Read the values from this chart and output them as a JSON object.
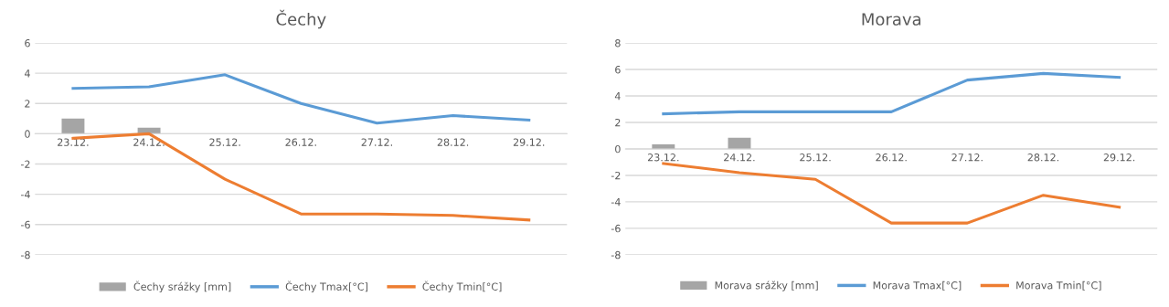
{
  "chart_data": [
    {
      "type": "bar",
      "title": "Čechy",
      "categories": [
        "23.12.",
        "24.12.",
        "25.12.",
        "26.12.",
        "27.12.",
        "28.12.",
        "29.12."
      ],
      "ylim": [
        -8,
        6
      ],
      "yticks": [
        -8,
        -6,
        -4,
        -2,
        0,
        2,
        4,
        6
      ],
      "grid": "y",
      "legend": "bottom",
      "series": [
        {
          "name": "Čechy srážky [mm]",
          "color": "#a5a5a5",
          "values": [
            1.0,
            0.4,
            null,
            null,
            null,
            null,
            null
          ]
        },
        {
          "name": "Čechy Tmax[°C]",
          "type": "line",
          "color": "#5b9bd5",
          "values": [
            3.0,
            3.1,
            3.9,
            2.0,
            0.7,
            1.2,
            0.9
          ]
        },
        {
          "name": "Čechy Tmin[°C]",
          "type": "line",
          "color": "#ed7d31",
          "values": [
            -0.3,
            0.0,
            -3.0,
            -5.3,
            -5.3,
            -5.4,
            -5.7
          ]
        }
      ]
    },
    {
      "type": "bar",
      "title": "Morava",
      "categories": [
        "23.12.",
        "24.12.",
        "25.12.",
        "26.12.",
        "27.12.",
        "28.12.",
        "29.12."
      ],
      "ylim": [
        -8,
        8
      ],
      "yticks": [
        -8,
        -6,
        -4,
        -2,
        0,
        2,
        4,
        6,
        8
      ],
      "grid": "y",
      "legend": "bottom",
      "series": [
        {
          "name": "Morava srážky [mm]",
          "color": "#a5a5a5",
          "values": [
            0.35,
            0.85,
            null,
            null,
            null,
            null,
            null
          ]
        },
        {
          "name": "Morava Tmax[°C]",
          "type": "line",
          "color": "#5b9bd5",
          "values": [
            2.65,
            2.8,
            2.8,
            2.8,
            5.2,
            5.7,
            5.4
          ]
        },
        {
          "name": "Morava Tmin[°C]",
          "type": "line",
          "color": "#ed7d31",
          "values": [
            -1.1,
            -1.8,
            -2.3,
            -5.6,
            -5.6,
            -3.5,
            -4.4
          ]
        }
      ]
    }
  ]
}
